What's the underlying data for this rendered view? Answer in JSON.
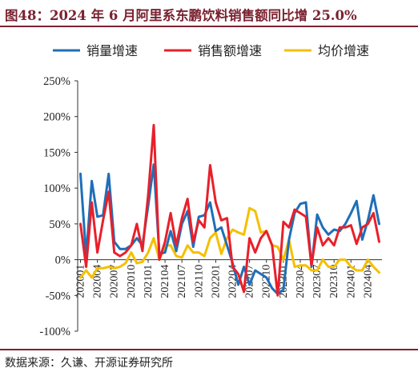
{
  "title": "图48：2024 年 6 月阿里系东鹏饮料销售额同比增 25.0%",
  "source": "数据来源：久谦、开源证券研究所",
  "chart_data": {
    "type": "line",
    "yunit": "%",
    "ylim": [
      -100,
      250
    ],
    "yticks": [
      -100,
      -50,
      0,
      50,
      100,
      150,
      200,
      250
    ],
    "legend_position": "top",
    "x_tick_labels": [
      "202001",
      "202004",
      "202007",
      "202010",
      "202101",
      "202104",
      "202107",
      "202110",
      "202201",
      "202204",
      "202207",
      "202210",
      "202301",
      "202304",
      "202307",
      "202310",
      "202401",
      "202404"
    ],
    "x": [
      "202001",
      "202002",
      "202003",
      "202004",
      "202005",
      "202006",
      "202007",
      "202008",
      "202009",
      "202010",
      "202011",
      "202012",
      "202101",
      "202102",
      "202103",
      "202104",
      "202105",
      "202106",
      "202107",
      "202108",
      "202109",
      "202110",
      "202111",
      "202112",
      "202201",
      "202202",
      "202203",
      "202204",
      "202205",
      "202206",
      "202207",
      "202208",
      "202209",
      "202210",
      "202211",
      "202212",
      "202301",
      "202302",
      "202303",
      "202304",
      "202305",
      "202306",
      "202307",
      "202308",
      "202309",
      "202310",
      "202311",
      "202312",
      "202401",
      "202402",
      "202403",
      "202404",
      "202405",
      "202406"
    ],
    "series": [
      {
        "name": "销量增速",
        "color": "#1f6fb8",
        "values": [
          120,
          5,
          110,
          60,
          62,
          120,
          25,
          15,
          15,
          20,
          30,
          20,
          75,
          133,
          8,
          10,
          40,
          12,
          50,
          68,
          18,
          60,
          62,
          80,
          40,
          45,
          20,
          -5,
          -35,
          -10,
          -35,
          -15,
          -20,
          -25,
          -40,
          -48,
          -42,
          28,
          65,
          78,
          80,
          -10,
          63,
          45,
          35,
          42,
          40,
          50,
          65,
          82,
          28,
          55,
          90,
          50
        ]
      },
      {
        "name": "销售额增速",
        "color": "#e8202a",
        "values": [
          50,
          -10,
          80,
          10,
          55,
          95,
          10,
          5,
          10,
          20,
          50,
          12,
          90,
          188,
          0,
          25,
          65,
          20,
          58,
          85,
          25,
          55,
          45,
          132,
          80,
          55,
          58,
          -10,
          -20,
          -45,
          30,
          10,
          30,
          40,
          20,
          -50,
          53,
          45,
          70,
          65,
          60,
          -8,
          45,
          20,
          30,
          20,
          45,
          45,
          48,
          22,
          45,
          50,
          65,
          25
        ]
      },
      {
        "name": "均价增速",
        "color": "#f5bf00",
        "values": [
          -25,
          -15,
          -25,
          -12,
          -12,
          -10,
          -12,
          -10,
          -5,
          10,
          -5,
          -3,
          10,
          30,
          0,
          20,
          20,
          5,
          3,
          20,
          10,
          10,
          5,
          30,
          38,
          8,
          30,
          42,
          38,
          35,
          72,
          68,
          38,
          40,
          20,
          18,
          0,
          28,
          -10,
          -8,
          -8,
          -15,
          -15,
          0,
          -10,
          -10,
          0,
          0,
          -10,
          -15,
          -15,
          0,
          -10,
          -18
        ]
      }
    ]
  }
}
